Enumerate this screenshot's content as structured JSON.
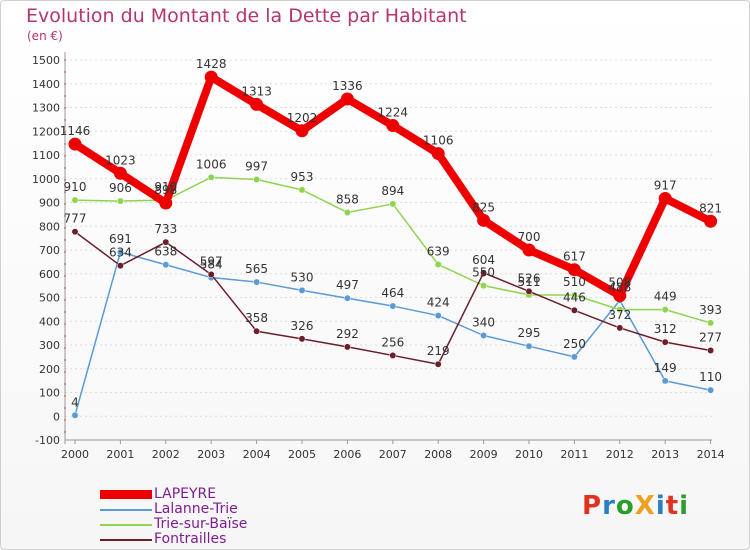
{
  "title": "Evolution du Montant de la Dette par Habitant",
  "unit": "(en €)",
  "logo": {
    "text": "ProXiti",
    "colors": [
      "#e0321e",
      "#2b7fc8",
      "#2b9e2b",
      "#f0a020",
      "#2b7fc8",
      "#e0321e",
      "#2b9e2b"
    ]
  },
  "chart_data": {
    "type": "line",
    "title": "Evolution du Montant de la Dette par Habitant",
    "ylabel": "(en €)",
    "x": [
      "2000",
      "2001",
      "2002",
      "2003",
      "2004",
      "2005",
      "2006",
      "2007",
      "2008",
      "2009",
      "2010",
      "2011",
      "2012",
      "2013",
      "2014"
    ],
    "ylim": [
      -100,
      1500
    ],
    "yticks": [
      -100,
      0,
      100,
      200,
      300,
      400,
      500,
      600,
      700,
      800,
      900,
      1000,
      1100,
      1200,
      1300,
      1400,
      1500
    ],
    "grid": true,
    "legend_position": "bottom-left",
    "series": [
      {
        "name": "LAPEYRE",
        "color": "#ee0000",
        "width": 8,
        "values": [
          1146,
          1023,
          898,
          1428,
          1313,
          1202,
          1336,
          1224,
          1106,
          825,
          700,
          617,
          508,
          917,
          821
        ],
        "labels": [
          "1146",
          "1023",
          "898",
          "1428",
          "1313",
          "1202",
          "1336",
          "1224",
          "1106",
          "825",
          "700",
          "617",
          "508",
          "917",
          "821"
        ]
      },
      {
        "name": "Lalanne-Trie",
        "color": "#5b9bd5",
        "width": 1.5,
        "values": [
          4,
          691,
          638,
          584,
          565,
          530,
          497,
          464,
          424,
          340,
          295,
          250,
          488,
          149,
          110
        ],
        "labels": [
          "4",
          "691",
          "638",
          "584",
          "565",
          "530",
          "497",
          "464",
          "424",
          "340",
          "295",
          "250",
          "488",
          "149",
          "110"
        ]
      },
      {
        "name": "Trie-sur-Baïse",
        "color": "#8fd44f",
        "width": 1.5,
        "values": [
          910,
          906,
          910,
          1006,
          997,
          953,
          858,
          894,
          639,
          550,
          511,
          510,
          449,
          449,
          393
        ],
        "labels": [
          "910",
          "906",
          "910",
          "1006",
          "997",
          "953",
          "858",
          "894",
          "639",
          "550",
          "511",
          "510",
          "",
          "449",
          "393"
        ]
      },
      {
        "name": "Fontrailles",
        "color": "#6b1f2a",
        "width": 1.5,
        "values": [
          777,
          634,
          733,
          597,
          358,
          326,
          292,
          256,
          219,
          604,
          526,
          446,
          372,
          312,
          277
        ],
        "labels": [
          "777",
          "634",
          "733",
          "597",
          "358",
          "326",
          "292",
          "256",
          "219",
          "604",
          "526",
          "446",
          "372",
          "312",
          "277"
        ]
      }
    ]
  }
}
